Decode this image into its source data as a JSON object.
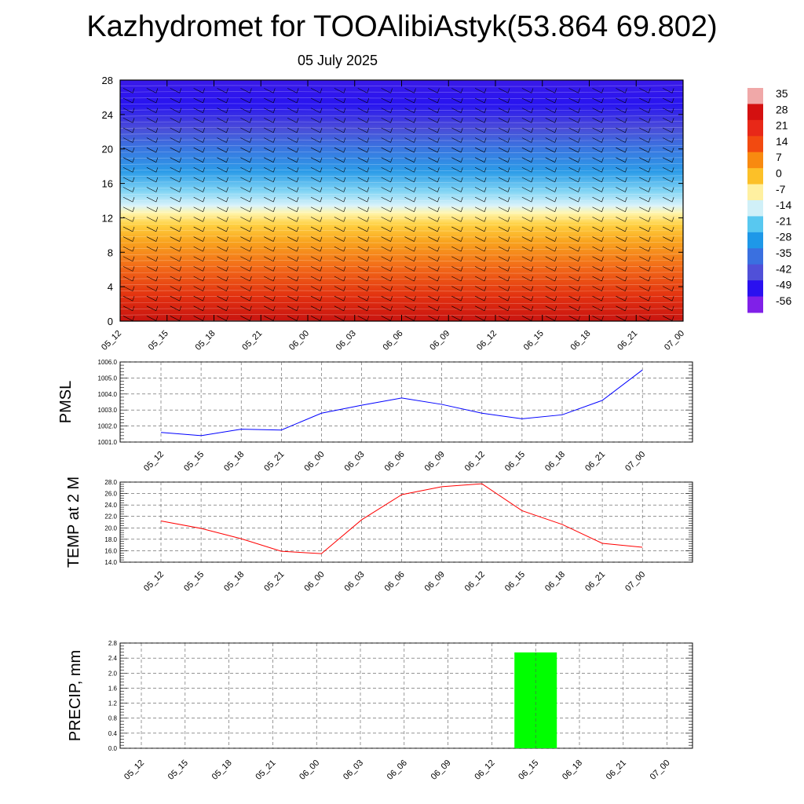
{
  "header": {
    "title": "Kazhydromet for TOOAlibiAstyk(53.864 69.802)",
    "date": "05 July 2025"
  },
  "chart_data": [
    {
      "type": "heatmap",
      "title": "",
      "xlabel": "",
      "ylabel": "",
      "categories": [
        "05_12",
        "05_15",
        "05_18",
        "05_21",
        "06_00",
        "06_03",
        "06_06",
        "06_09",
        "06_12",
        "06_15",
        "06_18",
        "06_21",
        "07_00"
      ],
      "yticks": [
        0,
        4,
        8,
        12,
        16,
        20,
        24,
        28
      ],
      "ylim": [
        0,
        28
      ],
      "colorbar": {
        "labels": [
          "35",
          "28",
          "21",
          "14",
          "7",
          "0",
          "-7",
          "-14",
          "-21",
          "-28",
          "-35",
          "-42",
          "-49",
          "-56"
        ],
        "colors": [
          "#f0a8a8",
          "#d41010",
          "#e82818",
          "#f24a10",
          "#f88a10",
          "#fcc028",
          "#fff0a0",
          "#d0f0f8",
          "#58c8f0",
          "#1e98e8",
          "#3a70e0",
          "#5050d8",
          "#2a10f0",
          "#8020e8"
        ]
      },
      "temperature_profile": [
        {
          "level": 0,
          "value": 30
        },
        {
          "level": 4,
          "value": 21
        },
        {
          "level": 8,
          "value": 12
        },
        {
          "level": 12,
          "value": 3
        },
        {
          "level": 13,
          "value": -8
        },
        {
          "level": 16,
          "value": -28
        },
        {
          "level": 20,
          "value": -40
        },
        {
          "level": 23,
          "value": -48
        },
        {
          "level": 28,
          "value": -56
        }
      ],
      "wind_barbs": "wind barbs at each time step and level"
    },
    {
      "type": "line",
      "ylabel": "PMSL",
      "categories": [
        "05_12",
        "05_15",
        "05_18",
        "05_21",
        "06_00",
        "06_03",
        "06_06",
        "06_09",
        "06_12",
        "06_15",
        "06_18",
        "06_21",
        "07_00"
      ],
      "series": [
        {
          "color": "#0000ff",
          "values": [
            1001.6,
            1001.4,
            1001.8,
            1001.75,
            1002.8,
            1003.3,
            1003.75,
            1003.35,
            1002.8,
            1002.45,
            1002.7,
            1003.6,
            1005.5
          ]
        }
      ],
      "ylim": [
        1001.0,
        1006.0
      ],
      "yticks": [
        "1001.0",
        "1002.0",
        "1003.0",
        "1004.0",
        "1005.0",
        "1006.0"
      ],
      "grid": true
    },
    {
      "type": "line",
      "ylabel": "TEMP at 2 M",
      "categories": [
        "05_12",
        "05_15",
        "05_18",
        "05_21",
        "06_00",
        "06_03",
        "06_06",
        "06_09",
        "06_12",
        "06_15",
        "06_18",
        "06_21",
        "07_00"
      ],
      "series": [
        {
          "color": "#ff0000",
          "values": [
            21.2,
            19.9,
            18.1,
            15.9,
            15.5,
            21.4,
            25.8,
            27.2,
            27.7,
            23.0,
            20.6,
            17.3,
            16.6
          ]
        }
      ],
      "ylim": [
        14.0,
        28.0
      ],
      "yticks": [
        "14.0",
        "16.0",
        "18.0",
        "20.0",
        "22.0",
        "24.0",
        "26.0",
        "28.0"
      ],
      "grid": true
    },
    {
      "type": "bar",
      "ylabel": "PRECIP, mm",
      "categories": [
        "05_12",
        "05_15",
        "05_18",
        "05_21",
        "06_00",
        "06_03",
        "06_06",
        "06_09",
        "06_12",
        "06_15",
        "06_18",
        "06_21",
        "07_00"
      ],
      "values": [
        0,
        0,
        0,
        0,
        0,
        0,
        0,
        0,
        0,
        2.55,
        0,
        0,
        0
      ],
      "color": "#00ff00",
      "ylim": [
        0,
        2.8
      ],
      "yticks": [
        "0.0",
        "0.4",
        "0.8",
        "1.2",
        "1.6",
        "2.0",
        "2.4",
        "2.8"
      ],
      "grid": true
    }
  ]
}
